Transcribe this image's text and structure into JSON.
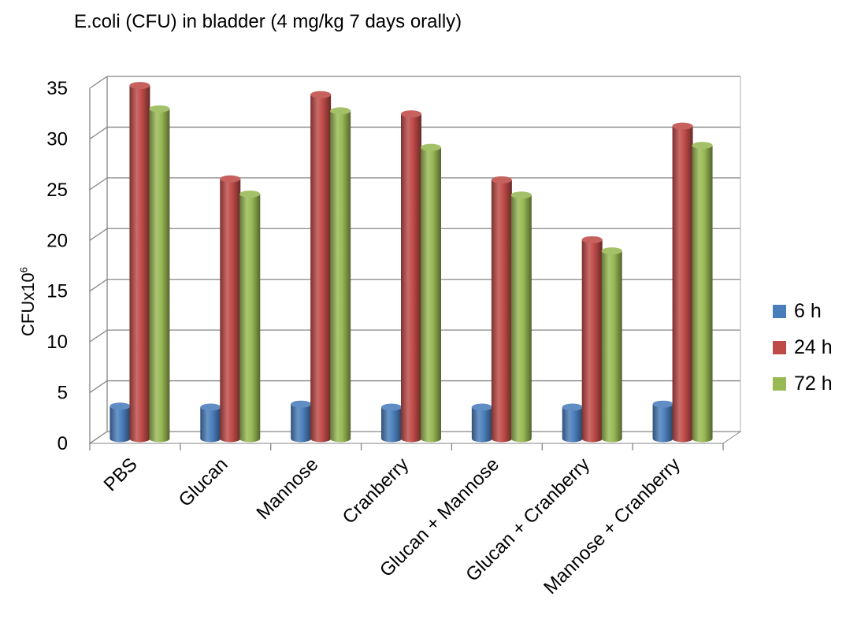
{
  "chart_data": {
    "type": "bar",
    "title": "E.coli (CFU) in bladder (4 mg/kg 7 days orally)",
    "ylabel": {
      "text": "CFUx10",
      "superscript": "6"
    },
    "xlabel": "",
    "categories": [
      "PBS",
      "Glucan",
      "Mannose",
      "Cranberry",
      "Glucan + Mannose",
      "Glucan + Cranberry",
      "Mannose + Cranberry"
    ],
    "series": [
      {
        "name": "6 h",
        "color": "#4a7ebb",
        "values": [
          3.2,
          3.1,
          3.4,
          3.1,
          3.1,
          3.1,
          3.4
        ]
      },
      {
        "name": "24 h",
        "color": "#be4b48",
        "values": [
          34.8,
          25.6,
          33.9,
          32.0,
          25.5,
          19.6,
          30.8
        ]
      },
      {
        "name": "72 h",
        "color": "#98b954",
        "values": [
          32.5,
          24.1,
          32.3,
          28.7,
          24.0,
          18.5,
          28.9
        ]
      }
    ],
    "ylim": [
      0,
      35
    ],
    "yticks": [
      0,
      5,
      10,
      15,
      20,
      25,
      30,
      35
    ],
    "grid": true,
    "legend": "right"
  }
}
